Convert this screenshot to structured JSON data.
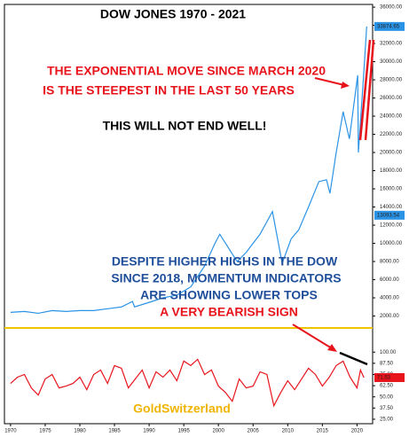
{
  "chart_data": [
    {
      "type": "line",
      "title": "DOW JONES   1970 - 2021",
      "annotations": [
        "THE EXPONENTIAL MOVE SINCE MARCH 2020",
        "IS THE STEEPEST IN THE LAST 50 YEARS",
        "THIS WILL NOT END WELL!",
        "DESPITE HIGHER HIGHS IN THE DOW",
        "SINCE 2018, MOMENTUM INDICATORS",
        "ARE SHOWING LOWER TOPS",
        "A VERY BEARISH SIGN"
      ],
      "x": [
        1970,
        1972,
        1974,
        1976,
        1978,
        1980,
        1982,
        1984,
        1986,
        1987.6,
        1987.9,
        1990,
        1992,
        1994,
        1996,
        1998,
        1999.5,
        2000.2,
        2002.7,
        2004,
        2006,
        2007.8,
        2009.2,
        2010.5,
        2011.6,
        2013,
        2014.5,
        2015.6,
        2016.1,
        2017,
        2018,
        2018.9,
        2019.5,
        2020.1,
        2020.2,
        2020.6,
        2021,
        2021.4
      ],
      "series": [
        {
          "color": "#2b93e6",
          "values": [
            2400,
            2500,
            2300,
            2600,
            2500,
            2600,
            2600,
            2800,
            3000,
            3600,
            3000,
            3500,
            4000,
            4300,
            5200,
            7500,
            10000,
            11000,
            8000,
            9000,
            11000,
            13500,
            7800,
            10500,
            11500,
            14000,
            16800,
            17000,
            15500,
            20000,
            24500,
            21500,
            25000,
            28500,
            20000,
            24500,
            29000,
            33874.65
          ]
        }
      ],
      "price_markers": [
        33874.65,
        13093.54
      ],
      "xlim": [
        1969.5,
        2022
      ],
      "ylim": [
        0,
        36300
      ],
      "yticks": [
        {
          "value": 2000,
          "label": "2000.00"
        },
        {
          "value": 4000,
          "label": "4000.00"
        },
        {
          "value": 6000,
          "label": "6000.00"
        },
        {
          "value": 8000,
          "label": "8000.00"
        },
        {
          "value": 10000,
          "label": "10000.00"
        },
        {
          "value": 12000,
          "label": "12000.00"
        },
        {
          "value": 14000,
          "label": "14000.00"
        },
        {
          "value": 16000,
          "label": "16000.00"
        },
        {
          "value": 18000,
          "label": "18000.00"
        },
        {
          "value": 20000,
          "label": "20000.00"
        },
        {
          "value": 22000,
          "label": "22000.00"
        },
        {
          "value": 24000,
          "label": "24000.00"
        },
        {
          "value": 26000,
          "label": "26000.00"
        },
        {
          "value": 28000,
          "label": "28000.00"
        },
        {
          "value": 30000,
          "label": "30000.00"
        },
        {
          "value": 32000,
          "label": "32000.00"
        },
        {
          "value": 34000,
          "label": "34000.00"
        },
        {
          "value": 36000,
          "label": "36000.00"
        }
      ],
      "xticks": [
        1970,
        1975,
        1980,
        1985,
        1990,
        1995,
        2000,
        2005,
        2010,
        2015,
        2020
      ]
    },
    {
      "type": "line",
      "annotations": [
        "GoldSwitzerland"
      ],
      "x": [
        1970,
        1971,
        1972,
        1973,
        1974,
        1975,
        1976,
        1977,
        1978,
        1979,
        1980,
        1981,
        1982,
        1983,
        1984,
        1985,
        1986,
        1987,
        1988,
        1989,
        1990,
        1991,
        1992,
        1993,
        1994,
        1995,
        1996,
        1997,
        1998,
        1999,
        2000,
        2001,
        2002,
        2003,
        2004,
        2005,
        2006,
        2007,
        2008,
        2009,
        2010,
        2011,
        2012,
        2013,
        2014,
        2015,
        2016,
        2017,
        2018,
        2019,
        2020,
        2020.5,
        2021
      ],
      "series": [
        {
          "color": "#e8141c",
          "values": [
            65,
            72,
            75,
            60,
            52,
            70,
            75,
            60,
            62,
            65,
            72,
            58,
            75,
            80,
            65,
            85,
            82,
            60,
            70,
            80,
            60,
            78,
            72,
            80,
            68,
            90,
            85,
            92,
            75,
            80,
            62,
            55,
            45,
            70,
            60,
            62,
            78,
            75,
            40,
            55,
            68,
            58,
            70,
            82,
            75,
            62,
            72,
            85,
            90,
            72,
            60,
            80,
            71.53
          ]
        }
      ],
      "price_markers": [
        71.53
      ],
      "xlim": [
        1969.5,
        2022
      ],
      "ylim": [
        20,
        125
      ],
      "yticks": [
        {
          "value": 25,
          "label": "25.00"
        },
        {
          "value": 37.5,
          "label": "37.50"
        },
        {
          "value": 50,
          "label": "50.00"
        },
        {
          "value": 62.5,
          "label": "62.50"
        },
        {
          "value": 75,
          "label": "75.00"
        },
        {
          "value": 87.5,
          "label": "87.50"
        },
        {
          "value": 100,
          "label": "100.00"
        }
      ]
    }
  ]
}
